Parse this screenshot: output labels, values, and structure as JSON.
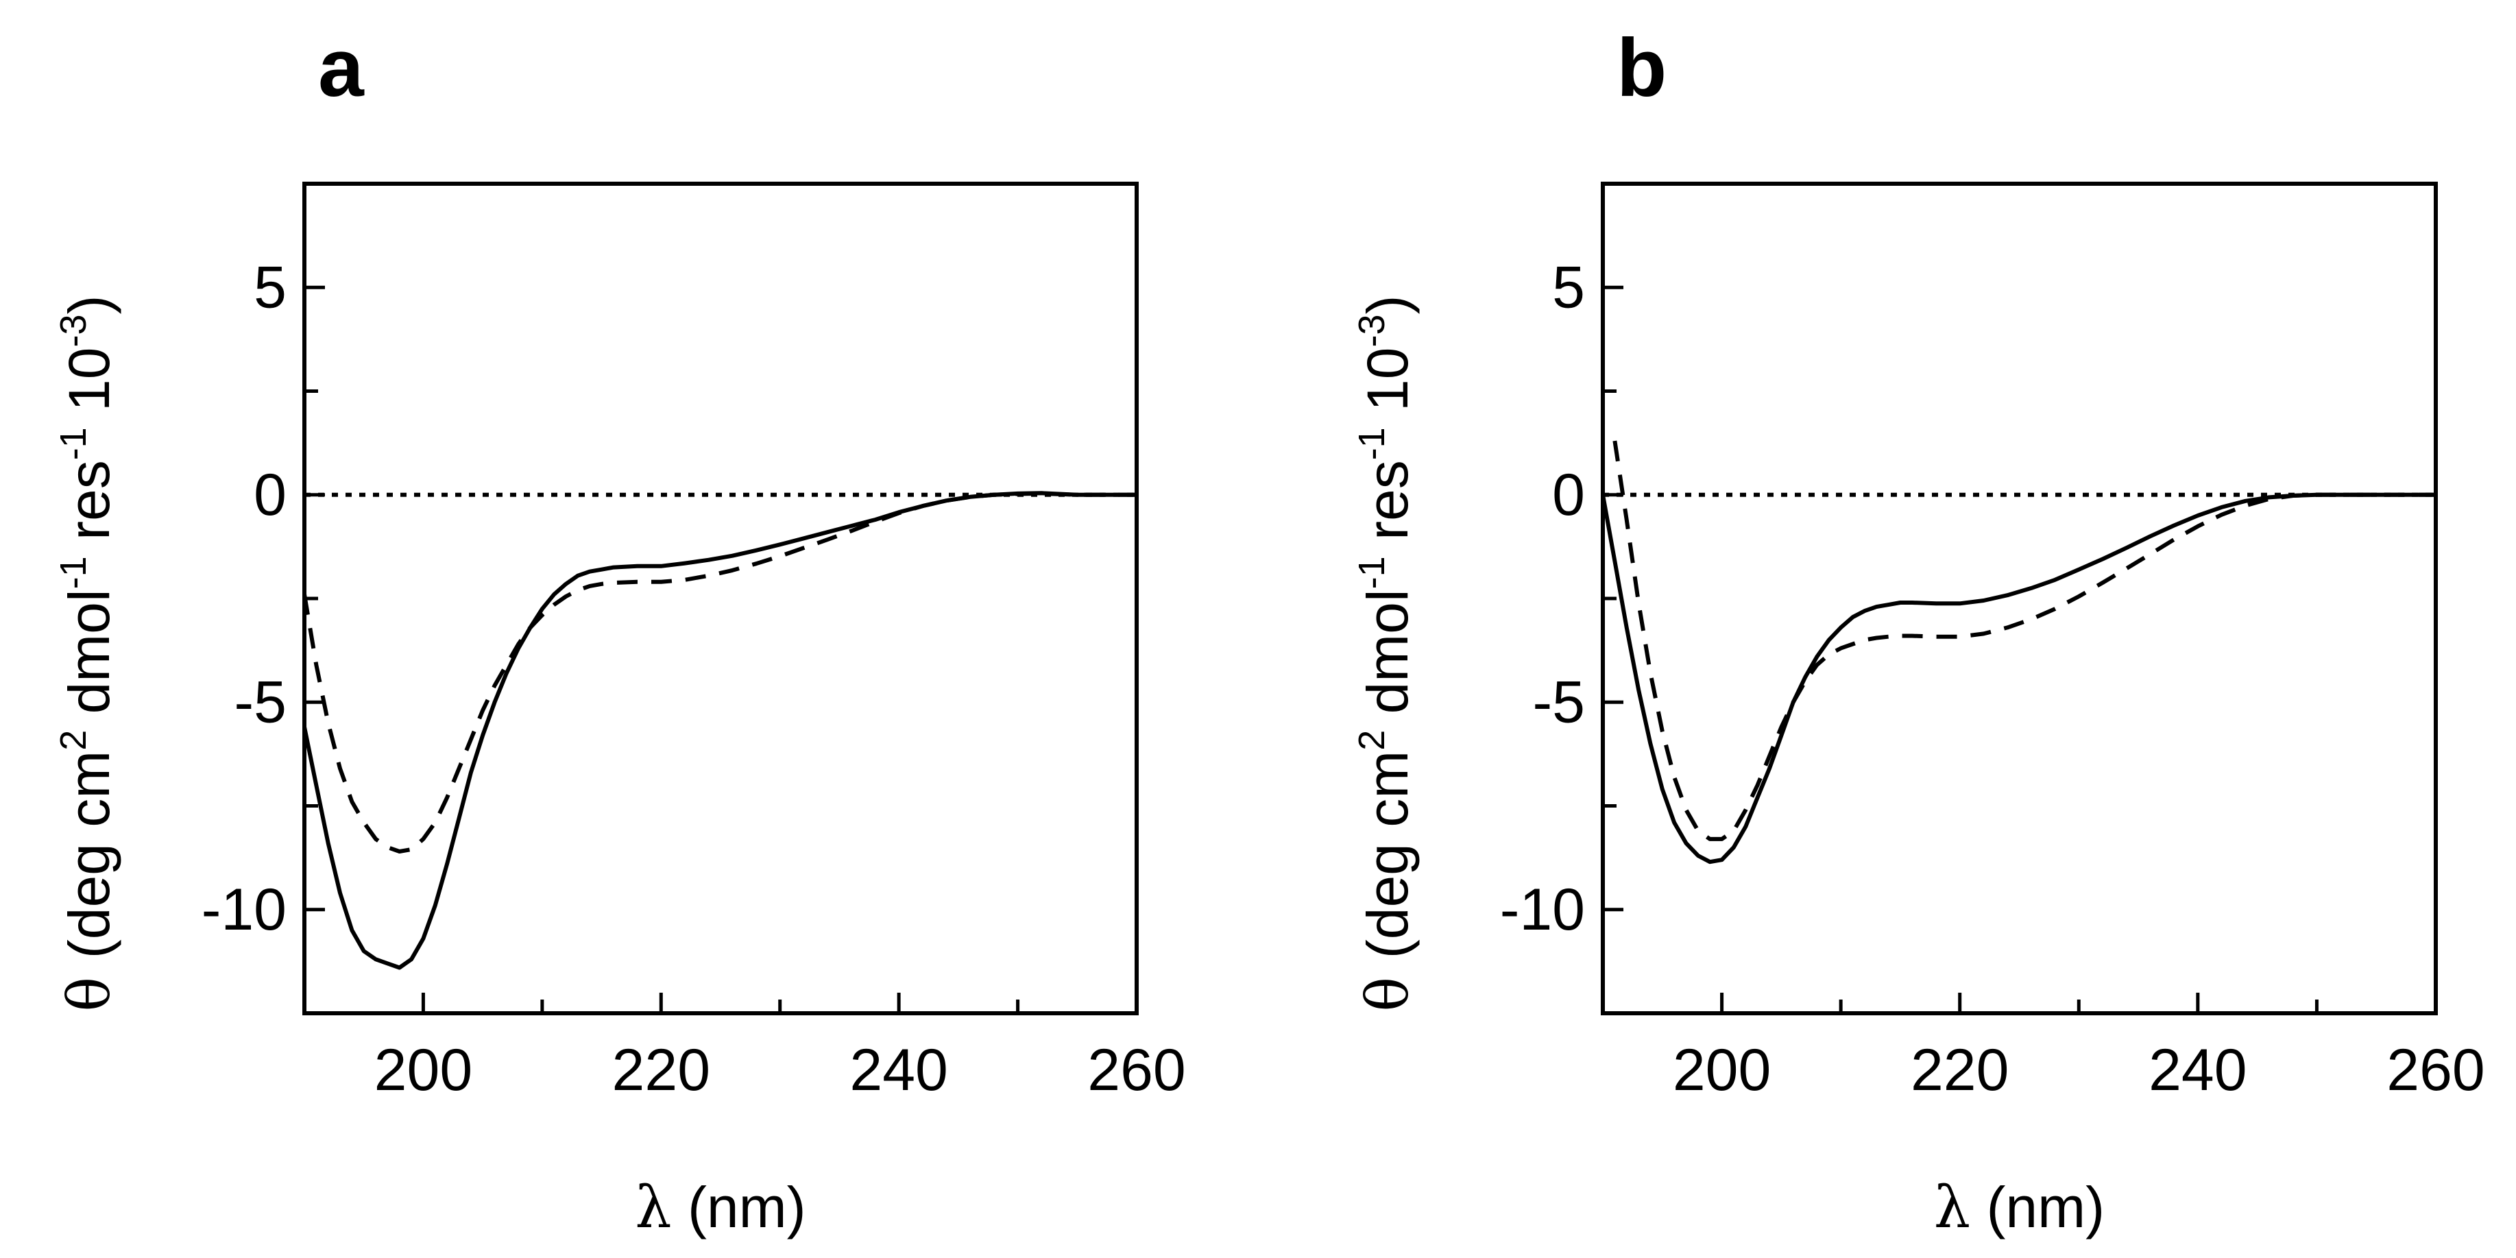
{
  "chart_data": [
    {
      "type": "line",
      "panel_label": "a",
      "x_unit_label": "(nm)",
      "x_symbol": "λ",
      "y_symbol": "θ",
      "y_label_parts": {
        "open": "(deg cm",
        "sup1": "2",
        "mid1": " dmol",
        "sup2": "-1",
        "mid2": " res",
        "sup3": "-1",
        "mid3": " 10",
        "sup4": "-3",
        "close": ")"
      },
      "xlim": [
        190,
        260
      ],
      "ylim": [
        -12.5,
        7.5
      ],
      "xticks": [
        200,
        220,
        240,
        260
      ],
      "xtick_labels": [
        "200",
        "220",
        "240",
        "260"
      ],
      "yticks": [
        5,
        0,
        -5,
        -10
      ],
      "ytick_labels": [
        "5",
        "0",
        "-5",
        "-10"
      ],
      "zero_line": true,
      "grid": false,
      "series": [
        {
          "name": "solid",
          "style": "solid",
          "x": [
            190,
            191,
            192,
            193,
            194,
            195,
            196,
            197,
            198,
            199,
            200,
            201,
            202,
            203,
            204,
            205,
            206,
            207,
            208,
            209,
            210,
            211,
            212,
            213,
            214,
            215,
            216,
            218,
            220,
            222,
            224,
            226,
            228,
            230,
            232,
            234,
            236,
            238,
            240,
            242,
            244,
            246,
            248,
            250,
            252,
            255,
            260
          ],
          "values": [
            -5.6,
            -7.0,
            -8.4,
            -9.6,
            -10.5,
            -11.0,
            -11.2,
            -11.3,
            -11.4,
            -11.2,
            -10.7,
            -9.9,
            -8.9,
            -7.8,
            -6.7,
            -5.8,
            -5.0,
            -4.3,
            -3.7,
            -3.2,
            -2.75,
            -2.4,
            -2.15,
            -1.95,
            -1.85,
            -1.8,
            -1.75,
            -1.72,
            -1.72,
            -1.65,
            -1.57,
            -1.47,
            -1.34,
            -1.2,
            -1.05,
            -0.9,
            -0.75,
            -0.6,
            -0.42,
            -0.27,
            -0.14,
            -0.05,
            0.0,
            0.03,
            0.04,
            0.0,
            0.0
          ]
        },
        {
          "name": "dashed",
          "style": "dashed",
          "x": [
            190,
            191,
            192,
            193,
            194,
            195,
            196,
            197,
            198,
            199,
            200,
            201,
            202,
            203,
            204,
            205,
            206,
            207,
            208,
            209,
            210,
            211,
            212,
            213,
            214,
            215,
            216,
            218,
            220,
            222,
            224,
            226,
            228,
            230,
            232,
            234,
            236,
            238,
            240,
            242,
            244,
            246,
            248,
            250,
            252,
            255,
            260
          ],
          "values": [
            -2.4,
            -4.1,
            -5.5,
            -6.6,
            -7.4,
            -7.9,
            -8.3,
            -8.5,
            -8.6,
            -8.55,
            -8.3,
            -7.9,
            -7.3,
            -6.6,
            -5.9,
            -5.2,
            -4.6,
            -4.1,
            -3.6,
            -3.2,
            -2.9,
            -2.65,
            -2.45,
            -2.3,
            -2.2,
            -2.15,
            -2.12,
            -2.1,
            -2.1,
            -2.05,
            -1.95,
            -1.82,
            -1.66,
            -1.48,
            -1.28,
            -1.08,
            -0.87,
            -0.65,
            -0.44,
            -0.27,
            -0.14,
            -0.05,
            0.0,
            0.02,
            0.03,
            0.0,
            0.0
          ]
        }
      ]
    },
    {
      "type": "line",
      "panel_label": "b",
      "x_unit_label": "(nm)",
      "x_symbol": "λ",
      "y_symbol": "θ",
      "y_label_parts": {
        "open": "(deg cm",
        "sup1": "2",
        "mid1": " dmol",
        "sup2": "-1",
        "mid2": " res",
        "sup3": "-1",
        "mid3": " 10",
        "sup4": "-3",
        "close": ")"
      },
      "xlim": [
        190,
        260
      ],
      "ylim": [
        -12.5,
        7.5
      ],
      "xticks": [
        200,
        220,
        240,
        260
      ],
      "xtick_labels": [
        "200",
        "220",
        "240",
        "260"
      ],
      "yticks": [
        5,
        0,
        -5,
        -10
      ],
      "ytick_labels": [
        "5",
        "0",
        "-5",
        "-10"
      ],
      "zero_line": true,
      "grid": false,
      "series": [
        {
          "name": "solid",
          "style": "solid",
          "x": [
            190,
            191,
            192,
            193,
            194,
            195,
            196,
            197,
            198,
            199,
            200,
            201,
            202,
            203,
            204,
            205,
            206,
            207,
            208,
            209,
            210,
            211,
            212,
            213,
            214,
            215,
            216,
            218,
            220,
            222,
            224,
            226,
            228,
            230,
            232,
            234,
            236,
            238,
            240,
            242,
            244,
            246,
            248,
            250,
            252,
            255,
            260
          ],
          "values": [
            0.0,
            -1.6,
            -3.2,
            -4.7,
            -6.0,
            -7.1,
            -7.9,
            -8.4,
            -8.7,
            -8.85,
            -8.8,
            -8.5,
            -8.0,
            -7.3,
            -6.6,
            -5.8,
            -5.0,
            -4.4,
            -3.9,
            -3.5,
            -3.2,
            -2.95,
            -2.8,
            -2.7,
            -2.65,
            -2.6,
            -2.6,
            -2.62,
            -2.62,
            -2.55,
            -2.42,
            -2.25,
            -2.05,
            -1.8,
            -1.55,
            -1.28,
            -1.0,
            -0.74,
            -0.5,
            -0.3,
            -0.15,
            -0.06,
            -0.02,
            0.0,
            0.0,
            0.0,
            0.0
          ]
        },
        {
          "name": "dashed",
          "style": "dashed",
          "x": [
            191,
            192,
            193,
            194,
            195,
            196,
            197,
            198,
            199,
            200,
            201,
            202,
            203,
            204,
            205,
            206,
            207,
            208,
            209,
            210,
            211,
            212,
            213,
            214,
            215,
            216,
            218,
            220,
            222,
            224,
            226,
            228,
            230,
            232,
            234,
            236,
            238,
            240,
            242,
            244,
            246,
            248,
            250,
            252,
            255,
            260
          ],
          "values": [
            1.3,
            -0.6,
            -2.6,
            -4.3,
            -5.7,
            -6.8,
            -7.6,
            -8.1,
            -8.3,
            -8.3,
            -8.1,
            -7.6,
            -7.0,
            -6.3,
            -5.6,
            -5.0,
            -4.5,
            -4.1,
            -3.85,
            -3.7,
            -3.6,
            -3.5,
            -3.45,
            -3.42,
            -3.4,
            -3.4,
            -3.42,
            -3.42,
            -3.35,
            -3.2,
            -3.0,
            -2.75,
            -2.45,
            -2.12,
            -1.78,
            -1.43,
            -1.08,
            -0.76,
            -0.48,
            -0.26,
            -0.1,
            -0.02,
            0.0,
            0.0,
            0.0,
            0.0
          ]
        }
      ]
    }
  ]
}
